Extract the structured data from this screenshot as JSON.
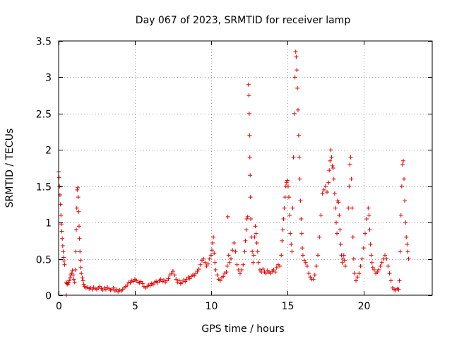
{
  "chart_data": {
    "type": "scatter",
    "title": "Day 067 of 2023, SRMTID for receiver lamp",
    "xlabel": "GPS time / hours",
    "ylabel": "SRMTID / TECUs",
    "xlim": [
      0,
      24.5
    ],
    "ylim": [
      0,
      3.5
    ],
    "x_ticks": [
      0,
      5,
      10,
      15,
      20
    ],
    "x_tick_labels": [
      "0",
      "5",
      "10",
      "15",
      "20"
    ],
    "y_ticks": [
      0,
      0.5,
      1,
      1.5,
      2,
      2.5,
      3,
      3.5
    ],
    "y_tick_labels": [
      "0",
      "0.5",
      "1",
      "1.5",
      "2",
      "2.5",
      "3",
      "3.5"
    ],
    "grid": true,
    "marker": "plus",
    "color": "#e60000",
    "series": [
      {
        "name": "SRMTID",
        "points": [
          [
            0.0,
            1.7
          ],
          [
            0.03,
            1.62
          ],
          [
            0.06,
            1.5
          ],
          [
            0.09,
            1.38
          ],
          [
            0.12,
            1.25
          ],
          [
            0.15,
            1.1
          ],
          [
            0.18,
            0.98
          ],
          [
            0.21,
            0.88
          ],
          [
            0.24,
            0.78
          ],
          [
            0.27,
            0.68
          ],
          [
            0.3,
            0.6
          ],
          [
            0.33,
            0.52
          ],
          [
            0.36,
            0.47
          ],
          [
            0.39,
            0.42
          ],
          [
            0.5,
            0.0
          ],
          [
            0.5,
            0.18
          ],
          [
            0.55,
            0.16
          ],
          [
            0.6,
            0.15
          ],
          [
            0.65,
            0.17
          ],
          [
            0.7,
            0.2
          ],
          [
            0.75,
            0.24
          ],
          [
            0.8,
            0.28
          ],
          [
            0.85,
            0.3
          ],
          [
            0.9,
            0.34
          ],
          [
            0.95,
            0.28
          ],
          [
            1.0,
            0.22
          ],
          [
            1.05,
            0.18
          ],
          [
            1.1,
            0.35
          ],
          [
            1.13,
            0.6
          ],
          [
            1.16,
            0.9
          ],
          [
            1.19,
            1.2
          ],
          [
            1.22,
            1.45
          ],
          [
            1.25,
            1.48
          ],
          [
            1.28,
            1.35
          ],
          [
            1.31,
            1.15
          ],
          [
            1.34,
            0.95
          ],
          [
            1.37,
            0.78
          ],
          [
            1.4,
            0.6
          ],
          [
            1.43,
            0.48
          ],
          [
            1.46,
            0.38
          ],
          [
            1.49,
            0.3
          ],
          [
            1.55,
            0.24
          ],
          [
            1.6,
            0.2
          ],
          [
            1.65,
            0.15
          ],
          [
            1.7,
            0.12
          ],
          [
            1.8,
            0.1
          ],
          [
            1.9,
            0.11
          ],
          [
            2.0,
            0.09
          ],
          [
            2.1,
            0.1
          ],
          [
            2.2,
            0.08
          ],
          [
            2.3,
            0.11
          ],
          [
            2.4,
            0.09
          ],
          [
            2.5,
            0.08
          ],
          [
            2.6,
            0.1
          ],
          [
            2.7,
            0.12
          ],
          [
            2.8,
            0.09
          ],
          [
            2.9,
            0.07
          ],
          [
            3.0,
            0.1
          ],
          [
            3.1,
            0.08
          ],
          [
            3.2,
            0.11
          ],
          [
            3.3,
            0.09
          ],
          [
            3.4,
            0.07
          ],
          [
            3.5,
            0.08
          ],
          [
            3.6,
            0.1
          ],
          [
            3.7,
            0.06
          ],
          [
            3.8,
            0.08
          ],
          [
            3.9,
            0.05
          ],
          [
            4.0,
            0.07
          ],
          [
            4.1,
            0.06
          ],
          [
            4.2,
            0.08
          ],
          [
            4.3,
            0.1
          ],
          [
            4.4,
            0.12
          ],
          [
            4.5,
            0.14
          ],
          [
            4.6,
            0.18
          ],
          [
            4.7,
            0.17
          ],
          [
            4.8,
            0.2
          ],
          [
            4.9,
            0.19
          ],
          [
            5.0,
            0.22
          ],
          [
            5.1,
            0.2
          ],
          [
            5.2,
            0.18
          ],
          [
            5.3,
            0.17
          ],
          [
            5.4,
            0.19
          ],
          [
            5.5,
            0.16
          ],
          [
            5.6,
            0.12
          ],
          [
            5.7,
            0.1
          ],
          [
            5.8,
            0.12
          ],
          [
            5.9,
            0.14
          ],
          [
            6.0,
            0.13
          ],
          [
            6.1,
            0.16
          ],
          [
            6.2,
            0.15
          ],
          [
            6.3,
            0.18
          ],
          [
            6.4,
            0.19
          ],
          [
            6.5,
            0.17
          ],
          [
            6.6,
            0.2
          ],
          [
            6.7,
            0.22
          ],
          [
            6.8,
            0.19
          ],
          [
            6.9,
            0.21
          ],
          [
            7.0,
            0.18
          ],
          [
            7.1,
            0.2
          ],
          [
            7.2,
            0.23
          ],
          [
            7.3,
            0.28
          ],
          [
            7.4,
            0.3
          ],
          [
            7.5,
            0.33
          ],
          [
            7.6,
            0.28
          ],
          [
            7.7,
            0.22
          ],
          [
            7.8,
            0.18
          ],
          [
            7.9,
            0.2
          ],
          [
            8.0,
            0.16
          ],
          [
            8.1,
            0.18
          ],
          [
            8.2,
            0.21
          ],
          [
            8.3,
            0.19
          ],
          [
            8.4,
            0.22
          ],
          [
            8.5,
            0.25
          ],
          [
            8.6,
            0.23
          ],
          [
            8.7,
            0.26
          ],
          [
            8.8,
            0.28
          ],
          [
            8.9,
            0.27
          ],
          [
            9.0,
            0.3
          ],
          [
            9.1,
            0.33
          ],
          [
            9.2,
            0.36
          ],
          [
            9.3,
            0.42
          ],
          [
            9.4,
            0.48
          ],
          [
            9.5,
            0.5
          ],
          [
            9.6,
            0.45
          ],
          [
            9.7,
            0.4
          ],
          [
            9.8,
            0.43
          ],
          [
            9.9,
            0.5
          ],
          [
            10.0,
            0.55
          ],
          [
            10.05,
            0.62
          ],
          [
            10.1,
            0.72
          ],
          [
            10.15,
            0.8
          ],
          [
            10.2,
            0.58
          ],
          [
            10.25,
            0.45
          ],
          [
            10.3,
            0.35
          ],
          [
            10.4,
            0.28
          ],
          [
            10.5,
            0.22
          ],
          [
            10.6,
            0.2
          ],
          [
            10.7,
            0.24
          ],
          [
            10.8,
            0.26
          ],
          [
            10.9,
            0.3
          ],
          [
            11.0,
            0.32
          ],
          [
            11.05,
            0.4
          ],
          [
            11.1,
            1.08
          ],
          [
            11.15,
            0.55
          ],
          [
            11.2,
            0.45
          ],
          [
            11.3,
            0.5
          ],
          [
            11.4,
            0.62
          ],
          [
            11.5,
            0.72
          ],
          [
            11.6,
            0.6
          ],
          [
            11.7,
            0.42
          ],
          [
            11.8,
            0.35
          ],
          [
            11.9,
            0.3
          ],
          [
            12.0,
            0.35
          ],
          [
            12.1,
            0.42
          ],
          [
            12.2,
            0.6
          ],
          [
            12.25,
            0.75
          ],
          [
            12.3,
            0.9
          ],
          [
            12.35,
            1.05
          ],
          [
            12.4,
            1.08
          ],
          [
            12.45,
            2.9
          ],
          [
            12.48,
            2.75
          ],
          [
            12.5,
            2.5
          ],
          [
            12.52,
            2.2
          ],
          [
            12.54,
            1.9
          ],
          [
            12.56,
            1.65
          ],
          [
            12.58,
            1.35
          ],
          [
            12.6,
            1.05
          ],
          [
            12.65,
            0.8
          ],
          [
            12.7,
            0.6
          ],
          [
            12.75,
            0.45
          ],
          [
            12.8,
            0.55
          ],
          [
            12.85,
            0.8
          ],
          [
            12.9,
            0.95
          ],
          [
            12.95,
            0.85
          ],
          [
            13.0,
            0.72
          ],
          [
            13.05,
            0.6
          ],
          [
            13.1,
            0.45
          ],
          [
            13.2,
            0.35
          ],
          [
            13.3,
            0.32
          ],
          [
            13.4,
            0.36
          ],
          [
            13.5,
            0.32
          ],
          [
            13.6,
            0.3
          ],
          [
            13.7,
            0.34
          ],
          [
            13.8,
            0.32
          ],
          [
            13.9,
            0.3
          ],
          [
            14.0,
            0.33
          ],
          [
            14.1,
            0.35
          ],
          [
            14.2,
            0.32
          ],
          [
            14.3,
            0.38
          ],
          [
            14.4,
            0.42
          ],
          [
            14.5,
            0.4
          ],
          [
            14.6,
            0.55
          ],
          [
            14.65,
            0.75
          ],
          [
            14.7,
            0.9
          ],
          [
            14.75,
            1.05
          ],
          [
            14.8,
            1.2
          ],
          [
            14.85,
            1.35
          ],
          [
            14.9,
            1.5
          ],
          [
            14.95,
            1.55
          ],
          [
            15.0,
            1.58
          ],
          [
            15.05,
            1.5
          ],
          [
            15.1,
            1.35
          ],
          [
            15.15,
            1.1
          ],
          [
            15.2,
            0.85
          ],
          [
            15.25,
            0.7
          ],
          [
            15.3,
            0.6
          ],
          [
            15.35,
            1.2
          ],
          [
            15.4,
            1.9
          ],
          [
            15.45,
            2.5
          ],
          [
            15.5,
            3.0
          ],
          [
            15.55,
            3.35
          ],
          [
            15.58,
            3.28
          ],
          [
            15.62,
            3.1
          ],
          [
            15.66,
            2.85
          ],
          [
            15.7,
            2.55
          ],
          [
            15.74,
            2.2
          ],
          [
            15.78,
            1.9
          ],
          [
            15.82,
            1.6
          ],
          [
            15.86,
            1.3
          ],
          [
            15.9,
            1.05
          ],
          [
            15.94,
            0.85
          ],
          [
            15.98,
            0.65
          ],
          [
            16.02,
            0.55
          ],
          [
            16.1,
            0.48
          ],
          [
            16.2,
            0.45
          ],
          [
            16.3,
            0.4
          ],
          [
            16.4,
            0.3
          ],
          [
            16.5,
            0.25
          ],
          [
            16.6,
            0.22
          ],
          [
            16.7,
            0.22
          ],
          [
            16.8,
            0.28
          ],
          [
            16.9,
            0.4
          ],
          [
            17.0,
            0.55
          ],
          [
            17.1,
            0.8
          ],
          [
            17.2,
            1.1
          ],
          [
            17.3,
            1.4
          ],
          [
            17.4,
            1.45
          ],
          [
            17.5,
            1.5
          ],
          [
            17.6,
            1.42
          ],
          [
            17.7,
            1.55
          ],
          [
            17.75,
            1.72
          ],
          [
            17.8,
            1.85
          ],
          [
            17.85,
            2.0
          ],
          [
            17.9,
            1.9
          ],
          [
            17.95,
            1.78
          ],
          [
            18.0,
            1.75
          ],
          [
            18.05,
            1.6
          ],
          [
            18.1,
            1.4
          ],
          [
            18.15,
            1.2
          ],
          [
            18.2,
            1.0
          ],
          [
            18.25,
            0.85
          ],
          [
            18.3,
            1.3
          ],
          [
            18.35,
            1.28
          ],
          [
            18.4,
            1.1
          ],
          [
            18.45,
            0.9
          ],
          [
            18.5,
            0.7
          ],
          [
            18.55,
            0.55
          ],
          [
            18.6,
            0.45
          ],
          [
            18.65,
            0.5
          ],
          [
            18.7,
            0.55
          ],
          [
            18.75,
            0.48
          ],
          [
            18.8,
            0.4
          ],
          [
            19.0,
            1.2
          ],
          [
            19.05,
            1.5
          ],
          [
            19.1,
            1.8
          ],
          [
            19.15,
            1.9
          ],
          [
            19.2,
            1.6
          ],
          [
            19.25,
            1.2
          ],
          [
            19.3,
            0.8
          ],
          [
            19.35,
            0.5
          ],
          [
            19.4,
            0.3
          ],
          [
            19.5,
            0.2
          ],
          [
            19.6,
            0.25
          ],
          [
            19.7,
            0.3
          ],
          [
            19.8,
            0.4
          ],
          [
            19.9,
            0.5
          ],
          [
            20.0,
            0.65
          ],
          [
            20.1,
            0.85
          ],
          [
            20.2,
            1.05
          ],
          [
            20.3,
            1.2
          ],
          [
            20.35,
            1.1
          ],
          [
            20.4,
            0.9
          ],
          [
            20.45,
            0.7
          ],
          [
            20.5,
            0.55
          ],
          [
            20.55,
            0.45
          ],
          [
            20.6,
            0.38
          ],
          [
            20.7,
            0.35
          ],
          [
            20.8,
            0.3
          ],
          [
            20.9,
            0.32
          ],
          [
            21.0,
            0.35
          ],
          [
            21.1,
            0.4
          ],
          [
            21.2,
            0.45
          ],
          [
            21.3,
            0.5
          ],
          [
            21.4,
            0.55
          ],
          [
            21.5,
            0.5
          ],
          [
            21.6,
            0.4
          ],
          [
            21.7,
            0.3
          ],
          [
            21.8,
            0.2
          ],
          [
            21.9,
            0.1
          ],
          [
            22.0,
            0.08
          ],
          [
            22.1,
            0.07
          ],
          [
            22.2,
            0.09
          ],
          [
            22.3,
            0.08
          ],
          [
            22.35,
            0.2
          ],
          [
            22.4,
            0.6
          ],
          [
            22.45,
            1.1
          ],
          [
            22.5,
            1.5
          ],
          [
            22.55,
            1.8
          ],
          [
            22.6,
            1.85
          ],
          [
            22.65,
            1.6
          ],
          [
            22.7,
            1.3
          ],
          [
            22.75,
            1.0
          ],
          [
            22.8,
            0.8
          ],
          [
            22.85,
            0.7
          ],
          [
            22.9,
            0.6
          ],
          [
            22.95,
            0.5
          ]
        ]
      }
    ]
  }
}
